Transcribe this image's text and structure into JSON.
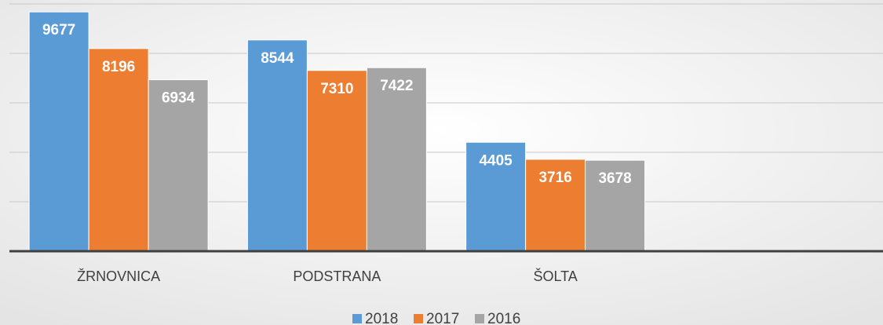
{
  "chart_data": {
    "type": "bar",
    "categories": [
      "ŽRNOVNICA",
      "PODSTRANA",
      "ŠOLTA",
      null
    ],
    "series": [
      {
        "name": "2018",
        "color": "#5b9bd5",
        "values": [
          9677,
          8544,
          4405,
          null
        ]
      },
      {
        "name": "2017",
        "color": "#ed7d31",
        "values": [
          8196,
          7310,
          3716,
          null
        ]
      },
      {
        "name": "2016",
        "color": "#a5a5a5",
        "values": [
          6934,
          7422,
          3678,
          null
        ]
      }
    ],
    "ylim": [
      0,
      10000
    ],
    "yticks": [
      0,
      2000,
      4000,
      6000,
      8000,
      10000
    ],
    "grid": true,
    "legend": "bottom"
  }
}
